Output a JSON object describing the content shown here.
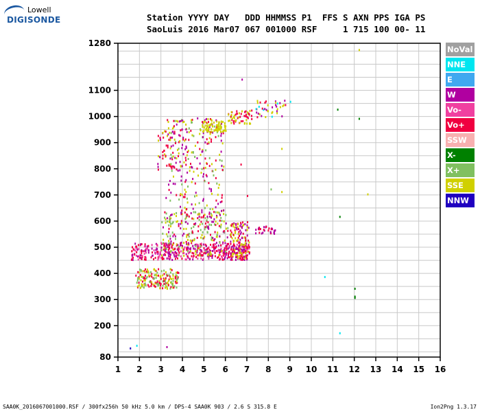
{
  "logo": {
    "line1": "Lowell",
    "line2": "DIGISONDE"
  },
  "header": {
    "line1": "Station YYYY DAY   DDD HHMMSS P1  FFS S AXN PPS IGA PS",
    "line2": "SaoLuis 2016 Mar07 067 001000 RSF     1 715 100 00- 11"
  },
  "legend": [
    {
      "label": "NoVal",
      "color": "#a0a0a0"
    },
    {
      "label": "NNE",
      "color": "#00e6f0"
    },
    {
      "label": "E",
      "color": "#40a8f0"
    },
    {
      "label": "W",
      "color": "#b000a0"
    },
    {
      "label": "Vo-",
      "color": "#f040a0"
    },
    {
      "label": "Vo+",
      "color": "#f00040"
    },
    {
      "label": "SSW",
      "color": "#f8b0b0"
    },
    {
      "label": "X-",
      "color": "#008000"
    },
    {
      "label": "X+",
      "color": "#80c060"
    },
    {
      "label": "SSE",
      "color": "#d0d000"
    },
    {
      "label": "NNW",
      "color": "#2000c0"
    }
  ],
  "footer": {
    "left": "SAA0K_2016067001000.RSF / 300fx256h 50 kHz 5.0 km / DPS-4 SAA0K 903 / 2.6 S 315.8 E",
    "right": "Ion2Png 1.3.17"
  },
  "chart_data": {
    "type": "scatter",
    "xlim": [
      1,
      16
    ],
    "ylim": [
      80,
      1280
    ],
    "xticks": [
      1,
      2,
      3,
      4,
      5,
      6,
      7,
      8,
      9,
      10,
      11,
      12,
      13,
      14,
      15,
      16
    ],
    "yticks": [
      80,
      200,
      300,
      400,
      500,
      600,
      700,
      800,
      900,
      1000,
      1100,
      1280
    ],
    "grid": true,
    "regions": [
      {
        "name": "F-layer main trace",
        "x": [
          1.6,
          7.1
        ],
        "y": [
          455,
          520
        ],
        "colors": [
          "Vo+",
          "W",
          "Vo-"
        ],
        "density": 420
      },
      {
        "name": "F-layer upper spread",
        "x": [
          3.0,
          6.1
        ],
        "y": [
          470,
          640
        ],
        "colors": [
          "SSE",
          "X+",
          "Vo+",
          "W"
        ],
        "density": 260
      },
      {
        "name": "Spread vertical columns",
        "x": [
          3.2,
          5.9
        ],
        "y": [
          600,
          1000
        ],
        "colors": [
          "SSE",
          "X+",
          "W",
          "Vo+"
        ],
        "density": 260
      },
      {
        "name": "Second trace",
        "x": [
          6.2,
          7.1
        ],
        "y": [
          455,
          600
        ],
        "colors": [
          "Vo+",
          "W",
          "SSE"
        ],
        "density": 150
      },
      {
        "name": "Lower trace",
        "x": [
          1.8,
          3.8
        ],
        "y": [
          345,
          420
        ],
        "colors": [
          "SSE",
          "X+",
          "Vo+"
        ],
        "density": 180
      },
      {
        "name": "Upper cluster",
        "x": [
          4.9,
          6.0
        ],
        "y": [
          945,
          985
        ],
        "colors": [
          "SSE"
        ],
        "density": 70
      },
      {
        "name": "Upper rising trace",
        "x": [
          6.1,
          7.2
        ],
        "y": [
          975,
          1030
        ],
        "colors": [
          "SSE",
          "Vo+"
        ],
        "density": 60
      },
      {
        "name": "Top cluster",
        "x": [
          7.4,
          8.8
        ],
        "y": [
          1000,
          1065
        ],
        "colors": [
          "SSE",
          "W",
          "Vo+",
          "NNE"
        ],
        "density": 40
      },
      {
        "name": "High columns",
        "x": [
          2.8,
          4.2
        ],
        "y": [
          800,
          950
        ],
        "colors": [
          "W",
          "Vo+",
          "SSE"
        ],
        "density": 70
      },
      {
        "name": "Side echoes",
        "x": [
          7.3,
          8.3
        ],
        "y": [
          555,
          585
        ],
        "colors": [
          "Vo+",
          "W"
        ],
        "density": 30
      }
    ],
    "points": [
      {
        "x": 12.2,
        "y": 1258,
        "c": "SSE"
      },
      {
        "x": 6.75,
        "y": 1145,
        "c": "W"
      },
      {
        "x": 11.2,
        "y": 1030,
        "c": "X-"
      },
      {
        "x": 12.2,
        "y": 995,
        "c": "X-"
      },
      {
        "x": 8.6,
        "y": 880,
        "c": "SSE"
      },
      {
        "x": 8.1,
        "y": 725,
        "c": "X+"
      },
      {
        "x": 8.6,
        "y": 715,
        "c": "SSE"
      },
      {
        "x": 12.6,
        "y": 706,
        "c": "SSE"
      },
      {
        "x": 11.3,
        "y": 620,
        "c": "X-"
      },
      {
        "x": 10.6,
        "y": 390,
        "c": "NNE"
      },
      {
        "x": 12.0,
        "y": 345,
        "c": "X-"
      },
      {
        "x": 12.0,
        "y": 315,
        "c": "X-"
      },
      {
        "x": 12.0,
        "y": 310,
        "c": "X-"
      },
      {
        "x": 11.3,
        "y": 175,
        "c": "NNE"
      },
      {
        "x": 1.55,
        "y": 117,
        "c": "NNW"
      },
      {
        "x": 1.85,
        "y": 127,
        "c": "NNE"
      },
      {
        "x": 3.25,
        "y": 122,
        "c": "W"
      },
      {
        "x": 9.0,
        "y": 1060,
        "c": "NNE"
      },
      {
        "x": 6.7,
        "y": 820,
        "c": "Vo+"
      },
      {
        "x": 7.0,
        "y": 700,
        "c": "Vo+"
      }
    ]
  }
}
